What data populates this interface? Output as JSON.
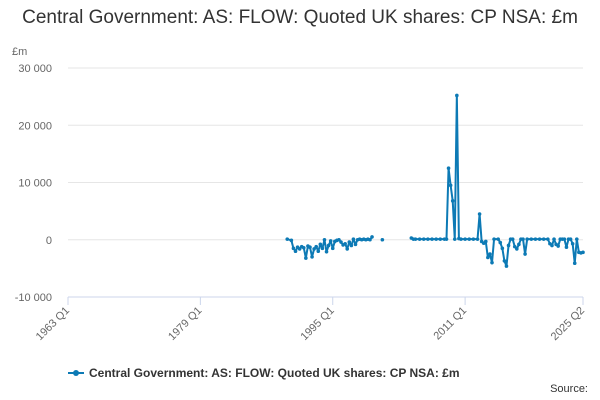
{
  "chart_data": {
    "type": "line",
    "title": "Central Government: AS: FLOW: Quoted UK shares: CP NSA: £m",
    "unit_label": "£m",
    "y_ticks": [
      30000,
      20000,
      10000,
      0,
      -10000
    ],
    "y_tick_labels": [
      "30 000",
      "20 000",
      "10 000",
      "0",
      "-10 000"
    ],
    "ylim": [
      -10000,
      30000
    ],
    "x_ticks": [
      1963.0,
      1979.0,
      1995.0,
      2011.0,
      2025.25
    ],
    "x_tick_labels": [
      "1963 Q1",
      "1979 Q1",
      "1995 Q1",
      "2011 Q1",
      "2025 Q2"
    ],
    "xlim": [
      1963.0,
      2025.25
    ],
    "grid": "horizontal",
    "legend_position": "bottom",
    "colors": {
      "series": "#0d7ab5",
      "grid": "#e6e6e6",
      "axis": "#ccd6eb"
    },
    "series": [
      {
        "name": "Central Government: AS: FLOW: Quoted UK shares: CP NSA: £m",
        "segments": [
          [
            [
              1989.5,
              100
            ],
            [
              1990.0,
              -100
            ],
            [
              1990.25,
              -1500
            ],
            [
              1990.5,
              -2000
            ],
            [
              1990.75,
              -1300
            ],
            [
              1991.0,
              -1600
            ],
            [
              1991.25,
              -1200
            ],
            [
              1991.5,
              -1400
            ],
            [
              1991.75,
              -3200
            ],
            [
              1992.0,
              -1100
            ],
            [
              1992.25,
              -1300
            ],
            [
              1992.5,
              -3000
            ],
            [
              1992.75,
              -1600
            ],
            [
              1993.0,
              -1200
            ],
            [
              1993.25,
              -2000
            ],
            [
              1993.5,
              -800
            ],
            [
              1993.75,
              -1500
            ],
            [
              1994.0,
              0
            ],
            [
              1994.25,
              -2100
            ],
            [
              1994.5,
              -1000
            ],
            [
              1994.75,
              -200
            ],
            [
              1995.0,
              -1500
            ],
            [
              1995.25,
              -300
            ],
            [
              1995.5,
              -100
            ],
            [
              1995.75,
              0
            ],
            [
              1996.0,
              -400
            ],
            [
              1996.25,
              -900
            ],
            [
              1996.5,
              -700
            ],
            [
              1996.75,
              -1600
            ],
            [
              1997.0,
              -400
            ],
            [
              1997.25,
              -1000
            ],
            [
              1997.5,
              100
            ],
            [
              1997.75,
              -800
            ],
            [
              1998.0,
              0
            ],
            [
              1998.25,
              100
            ],
            [
              1998.5,
              0
            ],
            [
              1998.75,
              100
            ],
            [
              1999.0,
              0
            ],
            [
              1999.25,
              100
            ],
            [
              1999.5,
              0
            ],
            [
              1999.75,
              500
            ]
          ],
          [
            [
              2001.0,
              0
            ]
          ],
          [
            [
              2004.5,
              300
            ],
            [
              2004.75,
              100
            ],
            [
              2005.0,
              100
            ],
            [
              2005.5,
              100
            ],
            [
              2006.0,
              100
            ],
            [
              2006.5,
              100
            ],
            [
              2007.0,
              100
            ],
            [
              2007.5,
              100
            ],
            [
              2008.0,
              100
            ],
            [
              2008.5,
              100
            ],
            [
              2008.75,
              100
            ],
            [
              2009.0,
              12500
            ],
            [
              2009.25,
              9500
            ],
            [
              2009.5,
              6800
            ],
            [
              2009.75,
              100
            ],
            [
              2010.0,
              25200
            ],
            [
              2010.25,
              200
            ],
            [
              2010.5,
              100
            ],
            [
              2011.0,
              100
            ],
            [
              2011.5,
              100
            ],
            [
              2012.0,
              100
            ],
            [
              2012.5,
              100
            ],
            [
              2012.75,
              4500
            ],
            [
              2013.0,
              -300
            ],
            [
              2013.25,
              -600
            ],
            [
              2013.5,
              -300
            ],
            [
              2013.75,
              -3100
            ],
            [
              2014.0,
              -2500
            ],
            [
              2014.25,
              -4000
            ],
            [
              2014.5,
              100
            ],
            [
              2015.0,
              100
            ],
            [
              2015.25,
              -500
            ],
            [
              2015.5,
              -1500
            ],
            [
              2015.75,
              -3700
            ],
            [
              2016.0,
              -4600
            ],
            [
              2016.25,
              -1000
            ],
            [
              2016.5,
              100
            ],
            [
              2016.75,
              100
            ],
            [
              2017.0,
              -1200
            ],
            [
              2017.25,
              -1600
            ],
            [
              2017.5,
              -800
            ],
            [
              2017.75,
              100
            ],
            [
              2018.0,
              100
            ],
            [
              2018.25,
              -2500
            ],
            [
              2018.5,
              100
            ],
            [
              2019.0,
              100
            ],
            [
              2019.5,
              100
            ],
            [
              2020.0,
              100
            ],
            [
              2020.5,
              100
            ],
            [
              2021.0,
              100
            ],
            [
              2021.25,
              -700
            ],
            [
              2021.5,
              -1000
            ],
            [
              2021.75,
              100
            ],
            [
              2022.0,
              -800
            ],
            [
              2022.25,
              -1100
            ],
            [
              2022.5,
              100
            ],
            [
              2022.75,
              100
            ],
            [
              2023.0,
              100
            ],
            [
              2023.25,
              -1300
            ],
            [
              2023.5,
              100
            ],
            [
              2023.75,
              100
            ],
            [
              2024.0,
              -700
            ],
            [
              2024.25,
              -4100
            ],
            [
              2024.5,
              100
            ],
            [
              2024.75,
              -2200
            ],
            [
              2025.0,
              -2300
            ],
            [
              2025.25,
              -2200
            ]
          ]
        ]
      }
    ],
    "source_label": "Source:"
  }
}
